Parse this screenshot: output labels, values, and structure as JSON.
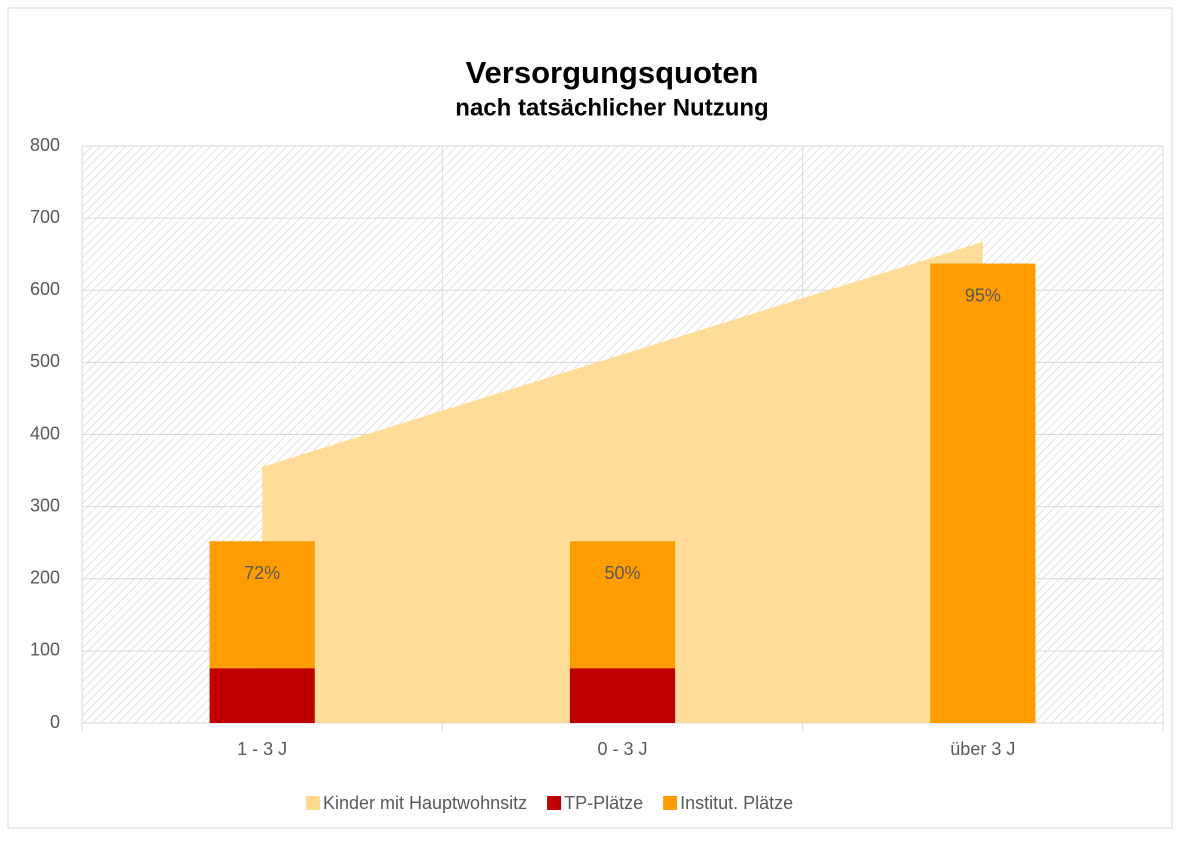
{
  "chart_data": {
    "type": "bar_area",
    "title": "Versorgungsquoten",
    "subtitle": "nach tatsächlicher Nutzung",
    "categories": [
      "1 - 3 J",
      "0 - 3 J",
      "über 3 J"
    ],
    "series": [
      {
        "name": "Kinder mit Hauptwohnsitz",
        "color": "#ffd98e",
        "kind": "area",
        "values": [
          355,
          511,
          667
        ]
      },
      {
        "name": "TP-Plätze",
        "color": "#c00000",
        "kind": "bar",
        "values": [
          76,
          76,
          0
        ]
      },
      {
        "name": "Institut. Plätze",
        "color": "#ff9c00",
        "kind": "bar",
        "values": [
          176,
          176,
          637
        ]
      }
    ],
    "quote_labels": [
      "72%",
      "50%",
      "95%"
    ],
    "ylim": [
      0,
      800
    ],
    "yticks": [
      0,
      100,
      200,
      300,
      400,
      500,
      600,
      700,
      800
    ],
    "grid": true,
    "legend": "bottom"
  }
}
